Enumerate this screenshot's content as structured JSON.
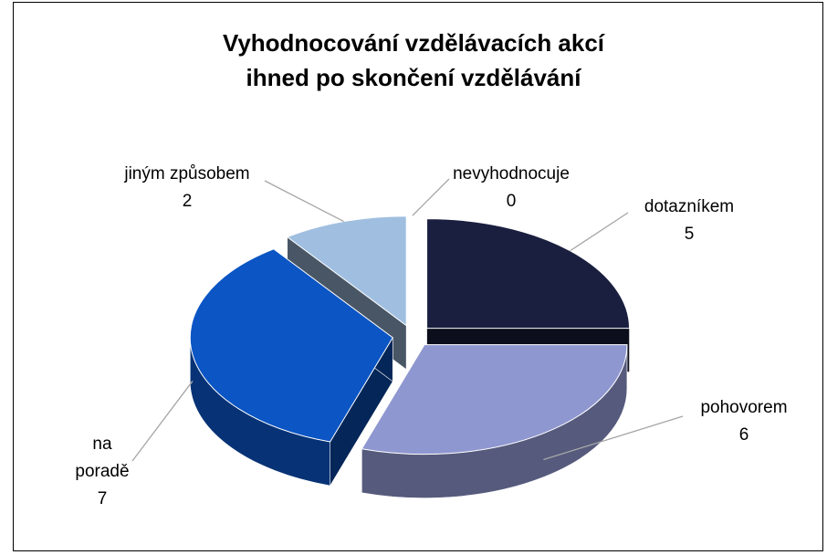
{
  "chart_data": {
    "type": "pie",
    "title": "Vyhodnocování vzdělávacích akcí ihned po skončení vzdělávání",
    "categories": [
      "dotazníkem",
      "pohovorem",
      "na poradě",
      "jiným způsobem",
      "nevyhodnocuje"
    ],
    "values": [
      5,
      6,
      7,
      2,
      0
    ],
    "colors": [
      "#1b1f3f",
      "#8f97d0",
      "#0b55c4",
      "#a0bfe0",
      "#4a6fa0"
    ]
  }
}
